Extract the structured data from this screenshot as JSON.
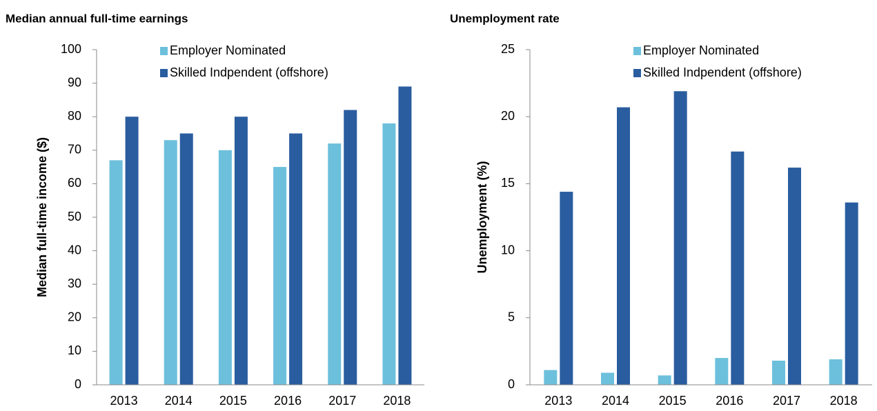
{
  "chart_data": [
    {
      "type": "bar",
      "title": "Median annual full-time earnings",
      "y_label": "Median full-time income ($)",
      "categories": [
        "2013",
        "2014",
        "2015",
        "2016",
        "2017",
        "2018"
      ],
      "series": [
        {
          "name": "Employer Nominated",
          "color": "#6cc0dc",
          "values": [
            67,
            73,
            70,
            65,
            72,
            78
          ]
        },
        {
          "name": "Skilled Indpendent (offshore)",
          "color": "#2a5d9f",
          "values": [
            80,
            75,
            80,
            75,
            82,
            89
          ]
        }
      ],
      "ylim": [
        0,
        100
      ],
      "yticks": [
        0,
        10,
        20,
        30,
        40,
        50,
        60,
        70,
        80,
        90,
        100
      ],
      "legend": "top"
    },
    {
      "type": "bar",
      "title": "Unemployment rate",
      "y_label": "Unemployment (%)",
      "categories": [
        "2013",
        "2014",
        "2015",
        "2016",
        "2017",
        "2018"
      ],
      "series": [
        {
          "name": "Employer Nominated",
          "color": "#6cc0dc",
          "values": [
            1.1,
            0.9,
            0.7,
            2.0,
            1.8,
            1.9
          ]
        },
        {
          "name": "Skilled Indpendent (offshore)",
          "color": "#2a5d9f",
          "values": [
            14.4,
            20.7,
            21.9,
            17.4,
            16.2,
            13.6
          ]
        }
      ],
      "ylim": [
        0,
        25
      ],
      "yticks": [
        0,
        5,
        10,
        15,
        20,
        25
      ],
      "legend": "top"
    }
  ]
}
